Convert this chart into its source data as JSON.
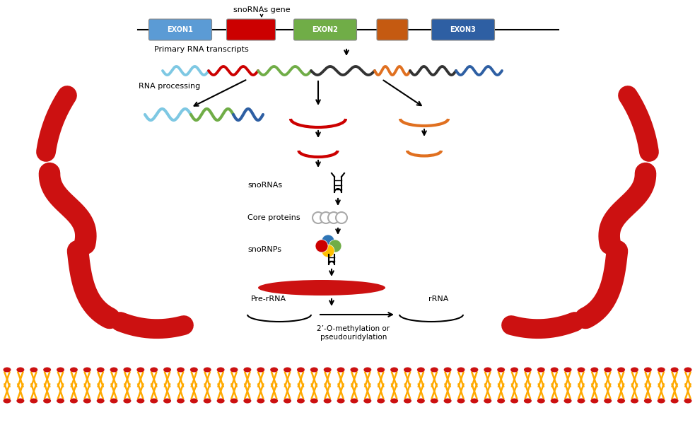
{
  "title": "snoRNAs gene",
  "exon_colors": [
    "#5b9bd5",
    "#cc0000",
    "#70ad47",
    "#c55a11",
    "#2e5fa3"
  ],
  "bg_color": "#ffffff",
  "membrane_head_color": "#cc1111",
  "membrane_tail_color": "#ffaa00",
  "red_color": "#cc1111",
  "label_primary": "Primary RNA transcripts",
  "label_processing": "RNA processing",
  "label_snorna": "snoRNAs",
  "label_core": "Core proteins",
  "label_snornp": "snoRNPs",
  "label_prerna": "Pre-rRNA",
  "label_rrna": "rRNA",
  "label_modification": "2’-O-methylation or\npseudouridylation"
}
